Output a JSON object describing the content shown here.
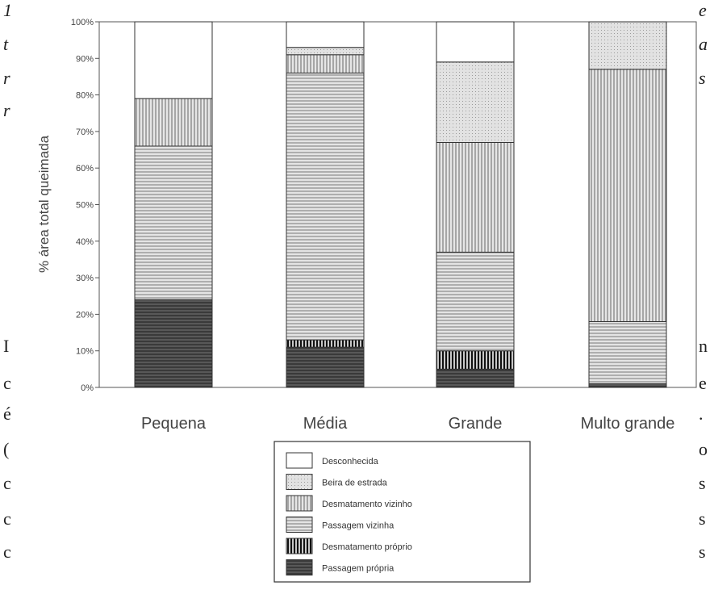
{
  "chart_data": {
    "type": "bar",
    "stacked": true,
    "ylabel": "% área total queimada",
    "ylim": [
      0,
      100
    ],
    "yticks": [
      "0%",
      "10%",
      "20%",
      "30%",
      "40%",
      "50%",
      "60%",
      "70%",
      "80%",
      "90%",
      "100%"
    ],
    "categories": [
      "Pequena",
      "Média",
      "Grande",
      "Multo grande"
    ],
    "series": [
      {
        "name": "Passagem própria",
        "values": [
          24,
          11,
          5,
          1
        ]
      },
      {
        "name": "Desmatamento próprio",
        "values": [
          0,
          2,
          5,
          0
        ]
      },
      {
        "name": "Passagem vizinha",
        "values": [
          42,
          73,
          27,
          17
        ]
      },
      {
        "name": "Desmatamento vizinho",
        "values": [
          13,
          5,
          30,
          69
        ]
      },
      {
        "name": "Beira de estrada",
        "values": [
          0,
          2,
          22,
          13
        ]
      },
      {
        "name": "Desconhecida",
        "values": [
          21,
          7,
          11,
          0
        ]
      }
    ],
    "legend": [
      {
        "name": "Desconhecida",
        "pattern": "blank"
      },
      {
        "name": "Beira de estrada",
        "pattern": "dots"
      },
      {
        "name": "Desmatamento vizinho",
        "pattern": "vertical"
      },
      {
        "name": "Passagem vizinha",
        "pattern": "horizontal"
      },
      {
        "name": "Desmatamento próprio",
        "pattern": "vertical-dark"
      },
      {
        "name": "Passagem própria",
        "pattern": "horizontal-dark"
      }
    ],
    "legend_placement": "bottom-center",
    "grid": false
  },
  "margin_text": {
    "left": [
      "1",
      "t",
      "r",
      "r",
      "",
      "",
      "",
      "I",
      "c",
      "é",
      "(",
      "c",
      "c",
      "c"
    ],
    "right": [
      "e",
      "a",
      "s",
      "",
      "",
      "",
      "",
      "",
      "n",
      "e",
      ".",
      "o",
      "s",
      "s",
      "s"
    ]
  },
  "colors": {
    "bar_fill": "#dcdcdc",
    "line": "#555555",
    "dark_line": "#222222",
    "border": "#333333"
  }
}
